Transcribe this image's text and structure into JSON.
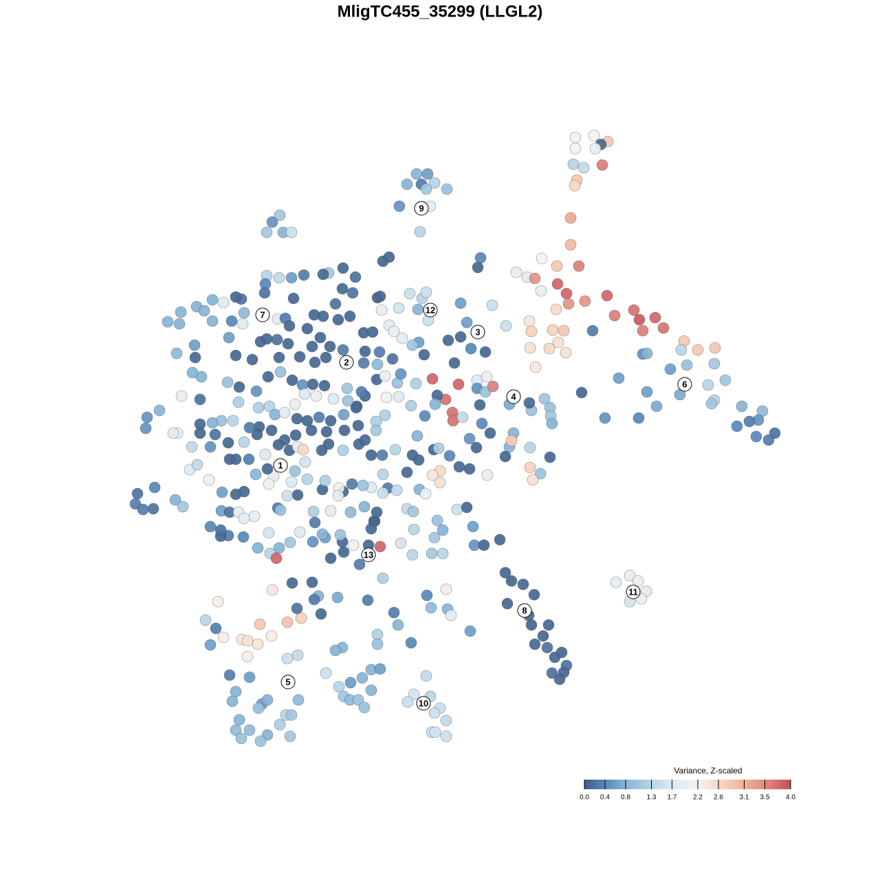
{
  "chart_data": {
    "type": "scatter",
    "title": "MligTC455_35299 (LLGL2)",
    "xlim": [
      190,
      1140
    ],
    "ylim": [
      1090,
      190
    ],
    "x": [
      606,
      622,
      613,
      632,
      650,
      592,
      620,
      581,
      626,
      611,
      407,
      396,
      388,
      412,
      424,
      837,
      864,
      884,
      874,
      837,
      866,
      834,
      849,
      876,
      839,
      836,
      830,
      830,
      842,
      810,
      788,
      751,
      767,
      778,
      811,
      824,
      787,
      827,
      851,
      883,
      894,
      922,
      930,
      953,
      965,
      935,
      809,
      770,
      773,
      804,
      820,
      812,
      799,
      823,
      771,
      779,
      862,
      995,
      1015,
      1040,
      935,
      941,
      991,
      975,
      999,
      1039,
      1055,
      1030,
      1039,
      1035,
      989,
      955,
      941,
      900,
      846,
      880,
      929,
      1079,
      1109,
      1103,
      1072,
      1090,
      1100,
      1127,
      1118,
      896,
      916,
      928,
      940,
      933,
      916,
      735,
      744,
      761,
      777,
      738,
      769,
      773,
      798,
      790,
      778,
      796,
      807,
      817,
      824,
      820,
      803,
      814,
      727,
      620,
      602,
      626,
      593,
      640,
      632,
      649,
      628,
      633,
      649,
      317,
      299,
      314,
      306,
      325,
      352,
      360,
      375,
      360,
      378,
      395,
      418,
      438,
      396,
      418,
      433,
      334,
      363,
      343,
      338,
      381,
      389,
      376,
      416,
      407,
      424,
      348,
      363,
      343,
      389,
      379,
      422,
      351,
      434,
      474,
      493,
      510,
      527,
      540,
      553,
      540,
      500,
      509,
      521,
      530,
      498,
      488,
      549,
      549,
      598,
      579,
      573,
      627,
      651,
      656,
      649,
      621,
      684,
      535,
      491,
      463,
      457,
      432,
      467,
      425,
      454,
      557,
      557,
      566,
      499,
      478,
      517,
      470,
      442,
      424,
      406,
      388,
      386,
      385,
      351,
      343,
      325,
      309,
      286,
      297,
      263,
      244,
      261,
      309,
      337,
      353,
      355,
      404,
      415,
      427,
      498,
      513,
      488,
      470,
      457,
      492,
      509,
      447,
      421,
      403,
      379,
      388,
      333,
      283,
      257,
      284,
      343,
      367,
      406,
      419,
      436,
      454,
      466,
      480,
      474,
      458,
      499,
      529,
      542,
      531,
      529,
      552,
      571,
      549,
      548,
      560,
      578,
      583,
      605,
      617,
      609,
      600,
      566,
      573,
      585,
      608,
      580,
      596,
      614,
      620,
      623,
      555,
      549,
      553,
      670,
      652,
      670,
      661,
      685,
      706,
      679,
      716,
      736,
      694,
      708,
      694,
      706,
      717,
      698,
      667,
      629,
      648,
      636,
      658,
      659,
      673,
      618,
      633,
      598,
      580,
      562,
      531,
      519,
      506,
      526,
      505,
      485,
      472,
      455,
      440,
      425,
      408,
      390,
      373,
      348,
      331,
      293,
      280,
      264,
      291,
      347,
      376,
      392,
      400,
      414,
      429,
      443,
      460,
      464,
      447,
      432,
      481,
      500,
      518,
      547,
      560,
      547,
      521,
      501,
      475,
      453,
      430,
      414,
      395,
      377,
      363,
      339,
      322,
      309,
      291,
      291,
      313,
      258,
      252,
      232,
      214,
      212,
      279,
      306,
      332,
      343,
      334,
      355,
      374,
      386,
      405,
      421,
      433,
      441,
      444,
      478,
      468,
      499,
      522,
      531,
      540,
      556,
      575,
      607,
      600,
      609,
      631,
      638,
      654,
      668,
      683,
      683,
      693,
      701,
      713,
      747,
      741,
      735,
      771,
      773,
      770,
      792,
      800,
      801,
      803,
      800,
      741,
      744,
      771,
      786,
      775,
      709,
      640,
      629,
      640,
      610,
      619,
      592,
      557,
      564,
      577,
      557,
      540,
      528,
      512,
      499,
      493,
      492,
      469,
      473,
      447,
      429,
      424,
      418,
      398,
      391,
      389,
      372,
      362,
      355,
      343,
      323,
      304,
      276,
      287,
      255,
      266,
      225,
      200,
      197,
      208,
      223,
      322,
      334,
      347,
      370,
      355,
      404,
      408,
      433,
      456,
      458,
      481,
      510,
      530,
      548,
      544,
      592,
      601,
      636,
      665,
      679,
      688,
      690,
      704,
      644,
      632,
      602,
      583,
      600,
      644,
      628,
      553,
      536,
      523,
      500,
      498,
      481,
      514,
      473,
      469,
      455,
      495,
      540,
      545,
      436,
      422,
      406,
      391,
      393,
      402,
      375,
      354,
      332,
      321,
      321,
      306,
      699,
      695
    ],
    "y": [
      253,
      253,
      268,
      266,
      275,
      268,
      275,
      300,
      300,
      337,
      313,
      323,
      338,
      338,
      338,
      200,
      197,
      206,
      210,
      216,
      216,
      239,
      244,
      240,
      262,
      270,
      317,
      356,
      387,
      387,
      376,
      396,
      403,
      405,
      413,
      427,
      423,
      442,
      438,
      430,
      459,
      451,
      465,
      462,
      477,
      481,
      450,
      467,
      482,
      480,
      481,
      498,
      507,
      513,
      506,
      534,
      481,
      496,
      509,
      506,
      515,
      514,
      509,
      537,
      531,
      529,
      553,
      560,
      582,
      587,
      574,
      591,
      570,
      550,
      571,
      608,
      608,
      591,
      598,
      611,
      620,
      613,
      635,
      630,
      640,
      847,
      837,
      845,
      860,
      871,
      875,
      833,
      845,
      850,
      865,
      878,
      895,
      909,
      909,
      925,
      937,
      942,
      956,
      949,
      968,
      978,
      979,
      988,
      785,
      983,
      1010,
      1013,
      1021,
      1030,
      1037,
      1048,
      1065,
      1065,
      1071,
      875,
      902,
      914,
      938,
      927,
      930,
      932,
      937,
      955,
      908,
      925,
      905,
      899,
      858,
      958,
      953,
      982,
      985,
      1006,
      1020,
      1024,
      1018,
      1030,
      1040,
      1054,
      1040,
      1047,
      1062,
      1062,
      1069,
      1078,
      1071,
      1074,
      1018,
      979,
      999,
      993,
      986,
      974,
      973,
      1004,
      1013,
      1018,
      1018,
      1029,
      942,
      946,
      923,
      937,
      935,
      909,
      891,
      884,
      886,
      895,
      857,
      866,
      918,
      873,
      869,
      867,
      872,
      885,
      893,
      848,
      847,
      841,
      380,
      374,
      390,
      397,
      403,
      399,
      400,
      404,
      404,
      401,
      413,
      426,
      435,
      432,
      440,
      436,
      446,
      452,
      454,
      468,
      471,
      467,
      467,
      471,
      455,
      464,
      463,
      434,
      420,
      426,
      442,
      460,
      458,
      465,
      460,
      478,
      474,
      494,
      497,
      493,
      491,
      502,
      514,
      520,
      517,
      523,
      520,
      500,
      519,
      504,
      491,
      504,
      520,
      527,
      509,
      484,
      483,
      511,
      528,
      512,
      522,
      530,
      552,
      547,
      557,
      544,
      558,
      516,
      498,
      502,
      473,
      482,
      492,
      450,
      448,
      427,
      434,
      425,
      466,
      451,
      433,
      431,
      441,
      495,
      490,
      528,
      507,
      512,
      469,
      444,
      474,
      553,
      548,
      565,
      570,
      562,
      589,
      559,
      551,
      581,
      575,
      600,
      612,
      607,
      605,
      588,
      590,
      577,
      578,
      576,
      591,
      583,
      570,
      565,
      580,
      561,
      559,
      560,
      553,
      541,
      548,
      569,
      563,
      556,
      548,
      542,
      576,
      581,
      585,
      593,
      591,
      603,
      600,
      588,
      573,
      576,
      607,
      612,
      609,
      612,
      603,
      593,
      613,
      604,
      626,
      619,
      626,
      628,
      626,
      633,
      640,
      626,
      621,
      622,
      612,
      612,
      615,
      617,
      630,
      632,
      630,
      630,
      597,
      607,
      623,
      650,
      650,
      644,
      668,
      668,
      643,
      632,
      661,
      647,
      655,
      650,
      654,
      672,
      646,
      655,
      655,
      646,
      640,
      662,
      662,
      654,
      634,
      662,
      669,
      654,
      652,
      663,
      679,
      682,
      638,
      651,
      616,
      630,
      630,
      650,
      664,
      651,
      597,
      586,
      580,
      593,
      605,
      616,
      665,
      588,
      641,
      680,
      689,
      698,
      691,
      685,
      691,
      702,
      712,
      718,
      687,
      690,
      710,
      713,
      717,
      709,
      706,
      704,
      715,
      710,
      721,
      712,
      699,
      697,
      685,
      701,
      721,
      693,
      704,
      682,
      690,
      668,
      715,
      719,
      716,
      698,
      683,
      676,
      727,
      737,
      709,
      718,
      733,
      741,
      740,
      743,
      745,
      745,
      751,
      754,
      739,
      742,
      720,
      744,
      760,
      743,
      745,
      737,
      745,
      758,
      740,
      744,
      757,
      741,
      738,
      766,
      793,
      793,
      771,
      782,
      770,
      790,
      807,
      805,
      805,
      795,
      793,
      821,
      803,
      788,
      812,
      793,
      782,
      777,
      788,
      778,
      769,
      758,
      774,
      789,
      797,
      775,
      805,
      812,
      797,
      781,
      779,
      780,
      771,
      766,
      375,
      389
    ],
    "values": [
      0.8,
      0.6,
      0.3,
      1.3,
      1.0,
      0.8,
      1.1,
      0.5,
      1.8,
      1.3,
      1.1,
      0.5,
      1.1,
      0.8,
      1.5,
      2.2,
      2.2,
      2.8,
      0.1,
      2.2,
      2.0,
      1.3,
      1.4,
      3.6,
      2.8,
      2.6,
      3.2,
      3.0,
      3.6,
      2.8,
      2.2,
      2.0,
      1.8,
      3.4,
      3.8,
      3.8,
      1.9,
      3.4,
      3.4,
      3.8,
      3.6,
      3.7,
      3.9,
      3.8,
      3.7,
      3.6,
      2.6,
      2.4,
      2.7,
      2.7,
      2.8,
      2.5,
      2.6,
      2.5,
      2.5,
      2.4,
      0.3,
      2.8,
      2.8,
      2.8,
      0.5,
      0.8,
      1.3,
      0.6,
      1.0,
      1.1,
      1.1,
      1.3,
      1.3,
      1.1,
      0.7,
      0.7,
      0.6,
      0.6,
      0.1,
      0.5,
      0.4,
      0.8,
      0.9,
      0.5,
      0.4,
      0.3,
      0.4,
      0.2,
      0.3,
      1.8,
      1.9,
      2.0,
      1.8,
      2.0,
      1.6,
      0.1,
      0.1,
      0.1,
      0.1,
      0.1,
      0.1,
      0.1,
      0.1,
      0.1,
      0.1,
      0.2,
      0.1,
      0.1,
      0.2,
      0.1,
      0.2,
      0.1,
      0.1,
      1.4,
      1.6,
      1.3,
      1.5,
      1.5,
      1.5,
      1.4,
      1.5,
      1.6,
      1.5,
      2.3,
      1.3,
      0.3,
      0.6,
      2.3,
      2.4,
      2.5,
      2.4,
      2.3,
      2.8,
      2.3,
      2.9,
      2.7,
      2.4,
      1.5,
      1.4,
      0.3,
      0.6,
      0.8,
      0.8,
      0.6,
      0.8,
      1.0,
      1.3,
      1.2,
      1.1,
      0.8,
      0.9,
      0.9,
      0.8,
      1.0,
      1.1,
      1.0,
      0.9,
      1.5,
      1.3,
      0.6,
      0.8,
      0.8,
      0.6,
      0.8,
      1.1,
      0.9,
      1.0,
      1.0,
      0.8,
      0.8,
      1.2,
      1.0,
      0.4,
      0.8,
      0.3,
      0.9,
      0.8,
      1.8,
      2.3,
      0.4,
      0.6,
      0.3,
      0.7,
      0.8,
      0.3,
      0.2,
      0.1,
      0.1,
      0.1,
      1.2,
      0.1,
      0.1,
      0.1,
      1.1,
      0.2,
      0.1,
      0.3,
      0.6,
      1.4,
      1.3,
      0.4,
      0.2,
      0.2,
      0.1,
      1.8,
      0.8,
      0.8,
      0.8,
      0.8,
      0.8,
      0.8,
      0.8,
      0.4,
      1.8,
      0.9,
      1.8,
      0.3,
      0.1,
      0.1,
      0.2,
      0.2,
      0.1,
      0.1,
      0.1,
      0.1,
      0.1,
      0.1,
      0.2,
      0.1,
      0.1,
      0.6,
      0.6,
      0.9,
      0.1,
      0.1,
      0.1,
      0.1,
      0.1,
      0.1,
      0.1,
      0.1,
      0.1,
      0.1,
      0.1,
      0.3,
      0.1,
      0.1,
      0.1,
      0.3,
      0.3,
      0.2,
      0.9,
      0.1,
      2.0,
      1.0,
      0.5,
      1.2,
      0.1,
      0.6,
      1.1,
      1.8,
      2.0,
      1.8,
      0.8,
      1.6,
      1.5,
      1.3,
      1.5,
      1.5,
      1.9,
      0.1,
      0.1,
      0.6,
      0.1,
      0.1,
      0.1,
      0.4,
      0.1,
      0.6,
      1.5,
      1.5,
      1.8,
      2.0,
      0.5,
      1.0,
      3.6,
      0.1,
      3.8,
      3.8,
      3.7,
      0.1,
      3.7,
      3.7,
      1.4,
      0.4,
      0.8,
      1.2,
      1.7,
      2.1,
      0.1,
      0.1,
      1.0,
      0.3,
      1.1,
      1.7,
      0.1,
      0.1,
      0.5,
      0.1,
      1.0,
      0.1,
      0.5,
      0.1,
      1.0,
      0.8,
      0.8,
      1.9,
      0.2,
      1.2,
      1.2,
      1.3,
      0.8,
      1.8,
      1.9,
      1.7,
      2.0,
      0.3,
      0.1,
      0.1,
      0.1,
      0.6,
      0.1,
      1.2,
      1.2,
      1.1,
      0.1,
      0.1,
      0.1,
      0.1,
      0.1,
      0.1,
      0.1,
      0.1,
      0.3,
      1.3,
      1.0,
      0.8,
      0.1,
      0.1,
      0.2,
      2.0,
      1.8,
      0.8,
      0.5,
      0.5,
      1.4,
      0.5,
      0.1,
      0.1,
      0.1,
      1.3,
      0.1,
      1.7,
      0.1,
      0.1,
      1.9,
      2.6,
      1.6,
      0.1,
      0.1,
      1.2,
      0.1,
      0.1,
      0.1,
      0.3,
      1.3,
      0.8,
      0.1,
      0.1,
      0.1,
      1.2,
      0.4,
      0.1,
      0.1,
      0.5,
      0.1,
      0.4,
      0.1,
      0.8,
      0.8,
      0.1,
      1.3,
      1.0,
      0.1,
      1.1,
      1.0,
      1.1,
      0.8,
      0.1,
      0.7,
      2.8,
      2.7,
      1.0,
      2.5,
      1.9,
      2.6,
      2.4,
      2.5,
      0.8,
      2.0,
      0.1,
      1.3,
      0.3,
      1.4,
      1.5,
      1.7,
      1.0,
      0.3,
      0.1,
      2.1,
      1.9,
      0.1,
      1.2,
      1.3,
      1.0,
      1.7,
      1.5,
      1.9,
      2.1,
      0.1,
      0.8,
      0.3,
      0.1,
      0.1,
      0.6,
      2.1,
      1.8,
      1.4,
      0.8,
      1.1,
      0.4,
      0.2,
      0.3,
      0.3,
      0.2,
      0.6,
      0.2,
      1.9,
      1.9,
      1.8,
      0.3,
      1.0,
      0.1,
      1.2,
      0.3,
      1.8,
      0.9,
      0.8,
      0.1,
      0.1,
      1.4,
      1.1,
      1.0,
      1.5,
      0.1,
      0.6,
      0.5,
      0.1,
      0.8,
      1.1,
      1.3,
      1.6,
      1.3,
      1.3,
      1.1,
      3.8,
      0.1,
      0.3,
      0.1,
      0.1,
      0.1,
      2.1,
      0.6,
      0.8,
      0.5,
      1.0,
      0.1,
      0.1,
      1.7,
      1.1,
      0.8,
      1.6,
      1.3,
      3.8,
      0.8,
      0.4,
      0.3,
      0.1,
      0.2,
      0.4,
      0.4,
      0.1
    ],
    "clusters": [
      {
        "label": "1",
        "x": 408,
        "y": 677
      },
      {
        "label": "2",
        "x": 504,
        "y": 527
      },
      {
        "label": "3",
        "x": 695,
        "y": 483
      },
      {
        "label": "4",
        "x": 747,
        "y": 577
      },
      {
        "label": "5",
        "x": 419,
        "y": 992
      },
      {
        "label": "6",
        "x": 996,
        "y": 559
      },
      {
        "label": "7",
        "x": 382,
        "y": 458
      },
      {
        "label": "8",
        "x": 763,
        "y": 888
      },
      {
        "label": "9",
        "x": 613,
        "y": 303
      },
      {
        "label": "10",
        "x": 616,
        "y": 1023
      },
      {
        "label": "11",
        "x": 921,
        "y": 861
      },
      {
        "label": "12",
        "x": 626,
        "y": 451
      },
      {
        "label": "13",
        "x": 536,
        "y": 807
      }
    ],
    "colorbar": {
      "title": "Variance, Z-scaled",
      "clim": [
        0,
        4
      ],
      "ticks": [
        {
          "value": 0,
          "label": "0.0"
        },
        0.4,
        0.8,
        1.3,
        1.7,
        2.2,
        2.6,
        3.1,
        3.5,
        {
          "value": 4,
          "label": "4.0"
        }
      ],
      "colors": [
        "#415d84",
        "#5788bb",
        "#85b4d6",
        "#b6d4e6",
        "#dce9f2",
        "#f4f2f0",
        "#f9d8c5",
        "#f0b196",
        "#df8b80",
        "#c44e5b"
      ]
    }
  }
}
